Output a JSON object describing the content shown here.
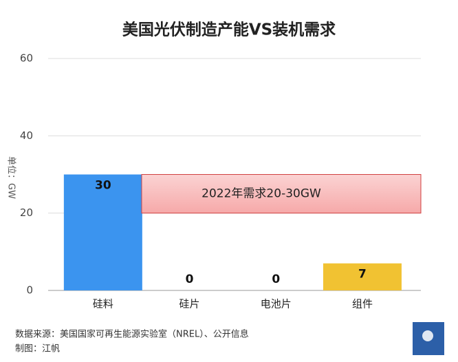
{
  "chart_data": {
    "type": "bar",
    "title": "美国光伏制造产能VS装机需求",
    "y_label": "单位：GW",
    "categories": [
      "硅料",
      "硅片",
      "电池片",
      "组件"
    ],
    "values": [
      30,
      0,
      0,
      7
    ],
    "value_labels": [
      "30",
      "0",
      "0",
      "7"
    ],
    "colors": [
      "#3b94ef",
      "#3b94ef",
      "#3b94ef",
      "#f1c232"
    ],
    "ylim": [
      0,
      60
    ],
    "yticks": [
      0,
      20,
      40,
      60
    ],
    "grid": true,
    "band": {
      "label": "2022年需求20-30GW",
      "range": [
        20,
        30
      ]
    },
    "source": "数据来源：美国国家可再生能源实验室（NREL）、公开信息",
    "credit": "制图：江帆"
  }
}
